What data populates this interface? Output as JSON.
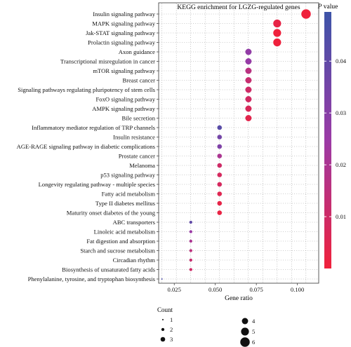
{
  "chart_data": {
    "type": "scatter",
    "title": "KEGG enrichment for LGZG-regulated genes",
    "xlabel": "Gene ratio",
    "ylabel": "",
    "xlim": [
      0.0155,
      0.113
    ],
    "x_ticks": [
      "0.025",
      "0.050",
      "0.075",
      "0.100"
    ],
    "x_tick_values": [
      0.025,
      0.05,
      0.075,
      0.1
    ],
    "grid": true,
    "points": [
      {
        "label": "Insulin signaling pathway",
        "gene_ratio": 0.1053,
        "count": 6,
        "p_value": 0.0002
      },
      {
        "label": "MAPK signaling pathway",
        "gene_ratio": 0.0877,
        "count": 5,
        "p_value": 0.0025
      },
      {
        "label": "Jak-STAT signaling pathway",
        "gene_ratio": 0.0877,
        "count": 5,
        "p_value": 0.0003
      },
      {
        "label": "Prolactin signaling pathway",
        "gene_ratio": 0.0877,
        "count": 5,
        "p_value": 0.0003
      },
      {
        "label": "Axon guidance",
        "gene_ratio": 0.0702,
        "count": 4,
        "p_value": 0.027
      },
      {
        "label": "Transcriptional misregulation in cancer",
        "gene_ratio": 0.0702,
        "count": 4,
        "p_value": 0.026
      },
      {
        "label": "mTOR signaling pathway",
        "gene_ratio": 0.0702,
        "count": 4,
        "p_value": 0.016
      },
      {
        "label": "Breast cancer",
        "gene_ratio": 0.0702,
        "count": 4,
        "p_value": 0.012
      },
      {
        "label": "Signaling pathways regulating pluripotency of stem cells",
        "gene_ratio": 0.0702,
        "count": 4,
        "p_value": 0.01
      },
      {
        "label": "FoxO signaling pathway",
        "gene_ratio": 0.0702,
        "count": 4,
        "p_value": 0.009
      },
      {
        "label": "AMPK signaling pathway",
        "gene_ratio": 0.0702,
        "count": 4,
        "p_value": 0.007
      },
      {
        "label": "Bile secretion",
        "gene_ratio": 0.0702,
        "count": 4,
        "p_value": 0.004
      },
      {
        "label": "Inflammatory mediator regulation of TRP channels",
        "gene_ratio": 0.0526,
        "count": 3,
        "p_value": 0.042
      },
      {
        "label": "Insulin resistance",
        "gene_ratio": 0.0526,
        "count": 3,
        "p_value": 0.035
      },
      {
        "label": "AGE-RAGE signaling pathway in diabetic complications",
        "gene_ratio": 0.0526,
        "count": 3,
        "p_value": 0.032
      },
      {
        "label": "Prostate cancer",
        "gene_ratio": 0.0526,
        "count": 3,
        "p_value": 0.02
      },
      {
        "label": "Melanoma",
        "gene_ratio": 0.0526,
        "count": 3,
        "p_value": 0.01
      },
      {
        "label": "p53 signaling pathway",
        "gene_ratio": 0.0526,
        "count": 3,
        "p_value": 0.008
      },
      {
        "label": "Longevity regulating pathway - multiple species",
        "gene_ratio": 0.0526,
        "count": 3,
        "p_value": 0.008
      },
      {
        "label": "Fatty acid metabolism",
        "gene_ratio": 0.0526,
        "count": 3,
        "p_value": 0.005
      },
      {
        "label": "Type II diabetes mellitus",
        "gene_ratio": 0.0526,
        "count": 3,
        "p_value": 0.003
      },
      {
        "label": "Maturity onset diabetes of the young",
        "gene_ratio": 0.0526,
        "count": 3,
        "p_value": 0.002
      },
      {
        "label": "ABC transporters",
        "gene_ratio": 0.0351,
        "count": 2,
        "p_value": 0.04
      },
      {
        "label": "Linoleic acid metabolism",
        "gene_ratio": 0.0351,
        "count": 2,
        "p_value": 0.025
      },
      {
        "label": "Fat digestion and absorption",
        "gene_ratio": 0.0351,
        "count": 2,
        "p_value": 0.02
      },
      {
        "label": "Starch and sucrose metabolism",
        "gene_ratio": 0.0351,
        "count": 2,
        "p_value": 0.015
      },
      {
        "label": "Circadian rhythm",
        "gene_ratio": 0.0351,
        "count": 2,
        "p_value": 0.012
      },
      {
        "label": "Biosynthesis of unsaturated fatty acids",
        "gene_ratio": 0.0351,
        "count": 2,
        "p_value": 0.01
      },
      {
        "label": "Phenylalanine, tyrosine, and tryptophan biosynthesis",
        "gene_ratio": 0.0175,
        "count": 1,
        "p_value": 0.045
      }
    ],
    "color_scale": {
      "title_italic": "P",
      "title_rest": " value",
      "ticks": [
        "0.01",
        "0.02",
        "0.03",
        "0.04"
      ],
      "tick_values": [
        0.01,
        0.02,
        0.03,
        0.04
      ],
      "range": [
        0.0,
        0.0495
      ],
      "low_color": "#f0213b",
      "mid_color": "#9b3aa6",
      "high_color": "#3d54a8"
    },
    "size_legend": {
      "title": "Count",
      "items": [
        1,
        2,
        3,
        4,
        5,
        6
      ],
      "labels": [
        "1",
        "2",
        "3",
        "4",
        "5",
        "6"
      ]
    }
  }
}
